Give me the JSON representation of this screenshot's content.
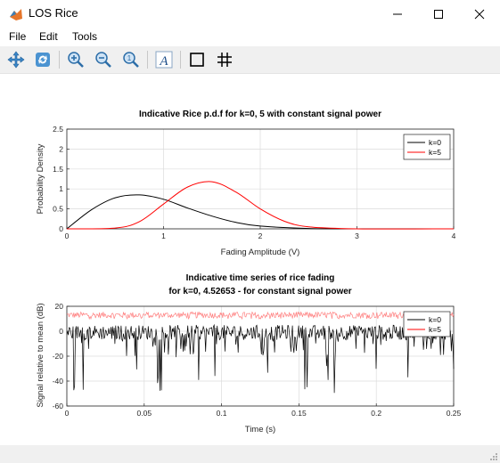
{
  "window": {
    "title": "LOS Rice"
  },
  "menu": {
    "items": [
      "File",
      "Edit",
      "Tools"
    ]
  },
  "toolbar": {
    "buttons": [
      "pan-icon",
      "rotate-icon",
      "zoom-in-icon",
      "zoom-out-icon",
      "zoom-reset-icon",
      "text-edit-icon",
      "box-icon",
      "grid-icon"
    ]
  },
  "colors": {
    "series_k0": "#000000",
    "series_k5": "#ff0000",
    "series_k5_top": "#ff8080",
    "grid": "#dcdcdc"
  },
  "chart_data": [
    {
      "type": "line",
      "title": "Indicative Rice p.d.f for k=0, 5 with constant signal power",
      "xlabel": "Fading Amplitude (V)",
      "ylabel": "Probability Density",
      "xlim": [
        0,
        4
      ],
      "ylim": [
        0,
        2.5
      ],
      "xticks": [
        "0",
        "1",
        "2",
        "3",
        "4"
      ],
      "yticks": [
        "0",
        "0.5",
        "1",
        "1.5",
        "2",
        "2.5"
      ],
      "grid": true,
      "legend": "top-right",
      "series": [
        {
          "name": "k=0",
          "x": [
            0,
            0.25,
            0.5,
            0.75,
            1.0,
            1.25,
            1.5,
            1.75,
            2.0,
            2.5,
            3.0,
            3.5,
            4.0
          ],
          "y": [
            0,
            0.47,
            0.78,
            0.85,
            0.74,
            0.52,
            0.32,
            0.16,
            0.07,
            0.01,
            0.0,
            0.0,
            0.0
          ]
        },
        {
          "name": "k=5",
          "x": [
            0,
            0.5,
            0.75,
            1.0,
            1.25,
            1.5,
            1.75,
            2.0,
            2.25,
            2.5,
            3.0,
            4.0
          ],
          "y": [
            0,
            0.02,
            0.18,
            0.62,
            1.05,
            1.18,
            0.92,
            0.5,
            0.19,
            0.05,
            0.0,
            0.0
          ]
        }
      ]
    },
    {
      "type": "line",
      "title": "Indicative time series of rice fading",
      "subtitle": "for k=0, 4.52653 - for constant signal power",
      "xlabel": "Time (s)",
      "ylabel": "Signal relative to mean (dB)",
      "xlim": [
        0,
        0.25
      ],
      "ylim": [
        -60,
        20
      ],
      "xticks": [
        "0",
        "0.05",
        "0.1",
        "0.15",
        "0.2",
        "0.25"
      ],
      "yticks": [
        "-60",
        "-40",
        "-20",
        "0",
        "20"
      ],
      "grid": true,
      "legend": "top-right",
      "series": [
        {
          "name": "k=0",
          "baseline_db": 0,
          "min_db": -50
        },
        {
          "name": "k=5",
          "baseline_db": 15,
          "min_db": 10
        }
      ]
    }
  ]
}
